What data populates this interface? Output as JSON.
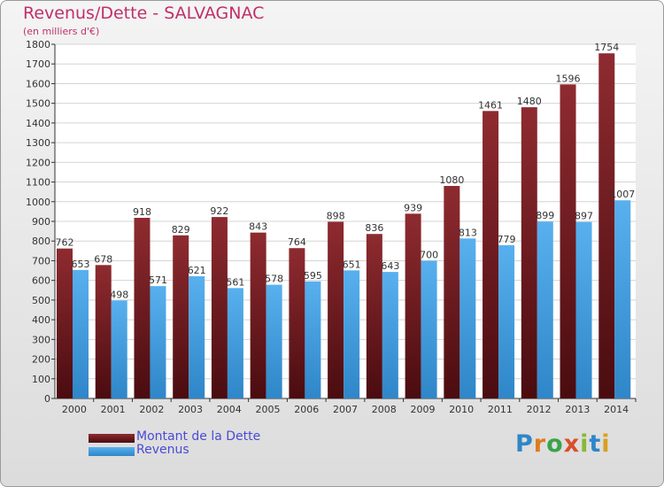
{
  "chart_data": {
    "type": "bar",
    "title": "Revenus/Dette - SALVAGNAC",
    "subtitle": "(en milliers d'€)",
    "categories": [
      "2000",
      "2001",
      "2002",
      "2003",
      "2004",
      "2005",
      "2006",
      "2007",
      "2008",
      "2009",
      "2010",
      "2011",
      "2012",
      "2013",
      "2014"
    ],
    "series": [
      {
        "name": "Montant de la Dette",
        "color": "#7a1f23",
        "values": [
          762,
          678,
          918,
          829,
          922,
          843,
          764,
          898,
          836,
          939,
          1080,
          1461,
          1480,
          1596,
          1754
        ]
      },
      {
        "name": "Revenus",
        "color": "#4aa3e6",
        "values": [
          653,
          498,
          571,
          621,
          561,
          578,
          595,
          651,
          643,
          700,
          813,
          779,
          899,
          897,
          1007
        ]
      }
    ],
    "ylim": [
      0,
      1800
    ],
    "yticks": [
      0,
      100,
      200,
      300,
      400,
      500,
      600,
      700,
      800,
      900,
      1000,
      1100,
      1200,
      1300,
      1400,
      1500,
      1600,
      1700,
      1800
    ],
    "grid": true,
    "legend": "bottom-left"
  },
  "brand": {
    "letters": [
      {
        "ch": "P",
        "color": "#2f86c8"
      },
      {
        "ch": "r",
        "color": "#e07b1f"
      },
      {
        "ch": "o",
        "color": "#3aa34a"
      },
      {
        "ch": "x",
        "color": "#d94f2a"
      },
      {
        "ch": "i",
        "color": "#8bb832"
      },
      {
        "ch": "t",
        "color": "#2f86c8"
      },
      {
        "ch": "i",
        "color": "#d9a01f"
      }
    ]
  }
}
